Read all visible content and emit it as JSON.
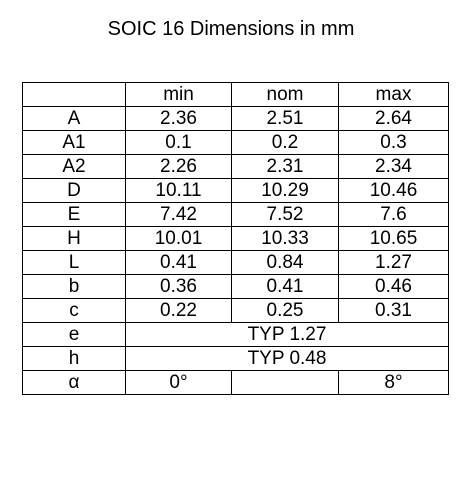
{
  "title": "SOIC 16 Dimensions in mm",
  "table": {
    "columns": [
      "min",
      "nom",
      "max"
    ],
    "rows": [
      {
        "label": "A",
        "min": "2.36",
        "nom": "2.51",
        "max": "2.64"
      },
      {
        "label": "A1",
        "min": "0.1",
        "nom": "0.2",
        "max": "0.3"
      },
      {
        "label": "A2",
        "min": "2.26",
        "nom": "2.31",
        "max": "2.34"
      },
      {
        "label": "D",
        "min": "10.11",
        "nom": "10.29",
        "max": "10.46"
      },
      {
        "label": "E",
        "min": "7.42",
        "nom": "7.52",
        "max": "7.6"
      },
      {
        "label": "H",
        "min": "10.01",
        "nom": "10.33",
        "max": "10.65"
      },
      {
        "label": "L",
        "min": "0.41",
        "nom": "0.84",
        "max": "1.27"
      },
      {
        "label": "b",
        "min": "0.36",
        "nom": "0.41",
        "max": "0.46"
      },
      {
        "label": "c",
        "min": "0.22",
        "nom": "0.25",
        "max": "0.31"
      },
      {
        "label": "e",
        "typ": "TYP 1.27"
      },
      {
        "label": "h",
        "typ": "TYP 0.48"
      },
      {
        "label": "α",
        "min": "0°",
        "max": "8°"
      }
    ]
  }
}
